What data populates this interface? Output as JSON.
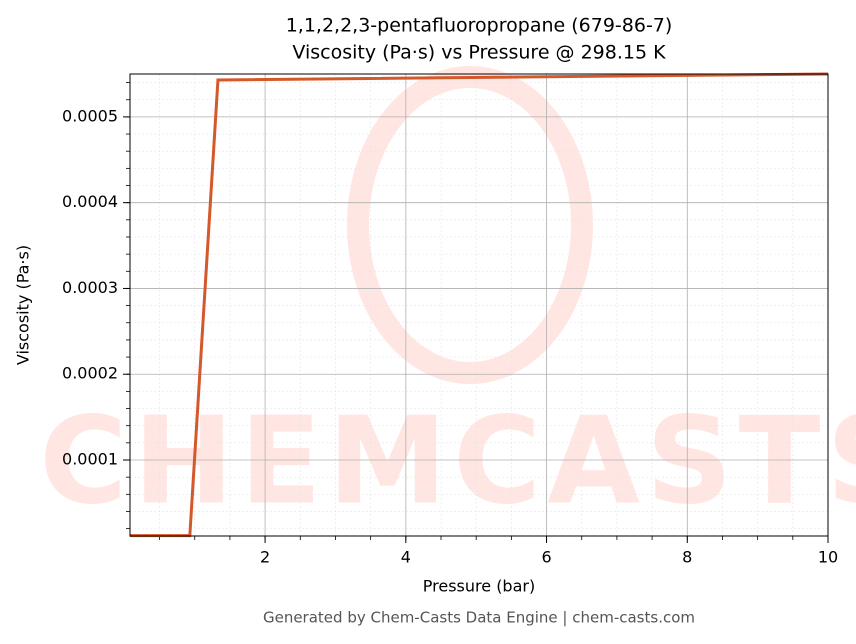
{
  "chart_data": {
    "type": "line",
    "title": "1,1,2,2,3-pentafluoropropane (679-86-7)",
    "subtitle": "Viscosity (Pa·s) vs Pressure @ 298.15 K",
    "x_label": "Pressure (bar)",
    "y_label": "Viscosity (Pa·s)",
    "footer": "Generated by Chem-Casts Data Engine | chem-casts.com",
    "watermark": "CHEMCASTS",
    "x": [
      0.08,
      0.93,
      1.33,
      10
    ],
    "series": [
      {
        "name": "Viscosity",
        "color": "#d4582a",
        "values": [
          1.18e-05,
          1.18e-05,
          0.000543,
          0.00055
        ]
      }
    ],
    "xlim": [
      0.08,
      10
    ],
    "ylim": [
      1.14e-05,
      0.00055
    ],
    "xticks": [
      2,
      4,
      6,
      8,
      10
    ],
    "yticks": [
      0.0001,
      0.0002,
      0.0003,
      0.0004,
      0.0005
    ],
    "grid": true,
    "minor_grid": true
  }
}
